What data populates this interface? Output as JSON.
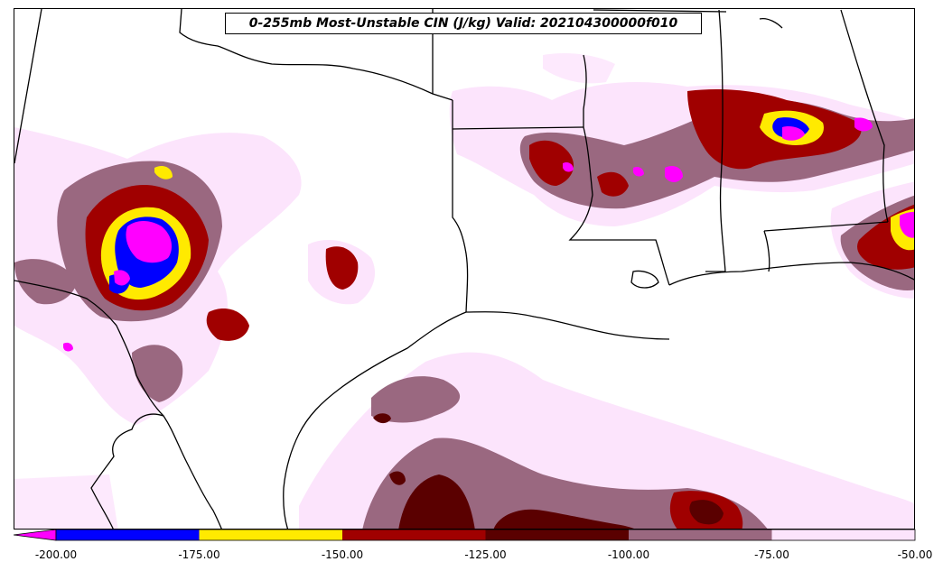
{
  "map": {
    "title": "0-255mb Most-Unstable CIN (J/kg) Valid: 202104300000f010",
    "colors": {
      "lt_-200": "#ff00ff",
      "-200_-175": "#0000ff",
      "-175_-150": "#ffea00",
      "-150_-125": "#a00000",
      "-125_-100": "#5a0000",
      "-100_-75": "#9a6880",
      "-75_-50": "#fce4fc",
      "boundary": "#000000"
    }
  },
  "colorbar": {
    "ticks": [
      "-200.00",
      "-175.00",
      "-150.00",
      "-125.00",
      "-100.00",
      "-75.00",
      "-50.00"
    ],
    "bins": [
      {
        "from": -200,
        "to": -175,
        "color": "#0000ff"
      },
      {
        "from": -175,
        "to": -150,
        "color": "#ffea00"
      },
      {
        "from": -150,
        "to": -125,
        "color": "#a00000"
      },
      {
        "from": -125,
        "to": -100,
        "color": "#5a0000"
      },
      {
        "from": -100,
        "to": -75,
        "color": "#9a6880"
      },
      {
        "from": -75,
        "to": -50,
        "color": "#fce4fc"
      }
    ],
    "extend_color": "#ff00ff"
  }
}
